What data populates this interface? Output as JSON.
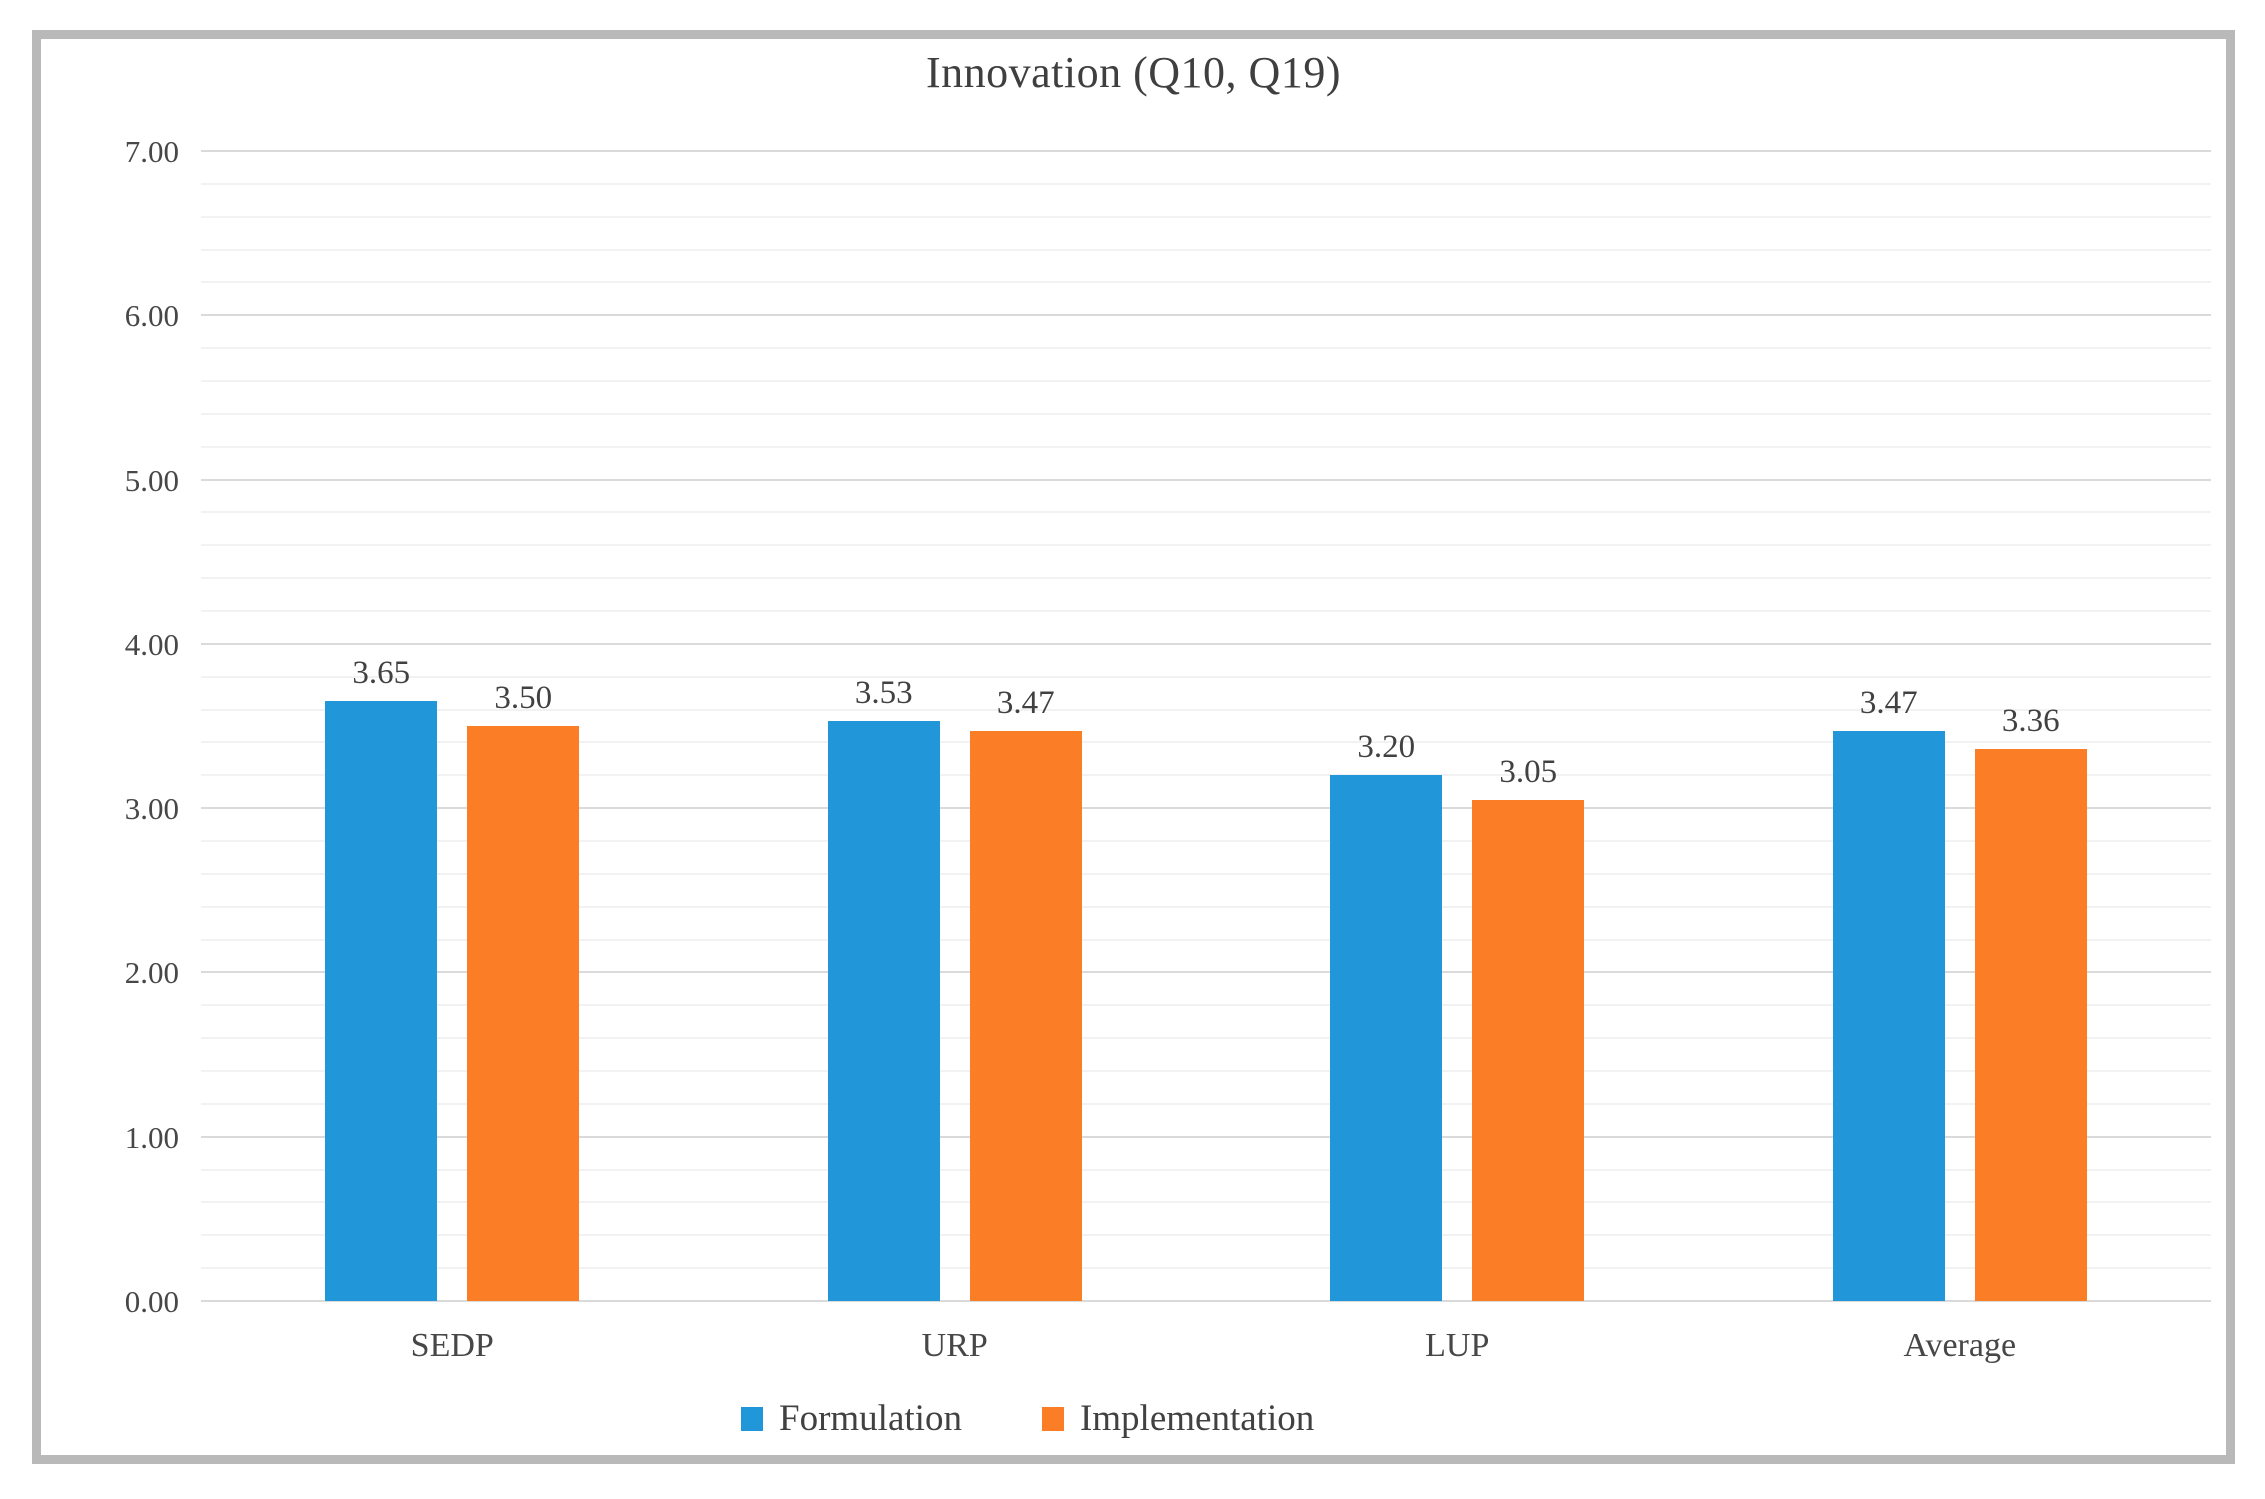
{
  "chart_data": {
    "type": "bar",
    "title": "Innovation (Q10, Q19)",
    "categories": [
      "SEDP",
      "URP",
      "LUP",
      "Average"
    ],
    "series": [
      {
        "name": "Formulation",
        "color": "#2196d8",
        "values": [
          3.65,
          3.53,
          3.2,
          3.47
        ],
        "labels": [
          "3.65",
          "3.53",
          "3.20",
          "3.47"
        ]
      },
      {
        "name": "Implementation",
        "color": "#fb7d25",
        "values": [
          3.5,
          3.47,
          3.05,
          3.36
        ],
        "labels": [
          "3.50",
          "3.47",
          "3.05",
          "3.36"
        ]
      }
    ],
    "ylim": [
      0,
      7
    ],
    "y_tick_labels": [
      "7.00",
      "6.00",
      "5.00",
      "4.00",
      "3.00",
      "2.00",
      "1.00",
      "0.00"
    ],
    "y_major_step": 1.0,
    "y_minor_step": 0.2,
    "grid": "horizontal major and minor gridlines",
    "legend_position": "bottom-center",
    "xlabel": "",
    "ylabel": ""
  },
  "colors": {
    "frame_border": "#b9b9b9",
    "major_gridline": "#dadada",
    "minor_gridline": "#f2f2f2",
    "title_text": "#3f3f3f",
    "axis_text": "#474747",
    "value_text": "#414141",
    "background": "#ffffff"
  }
}
